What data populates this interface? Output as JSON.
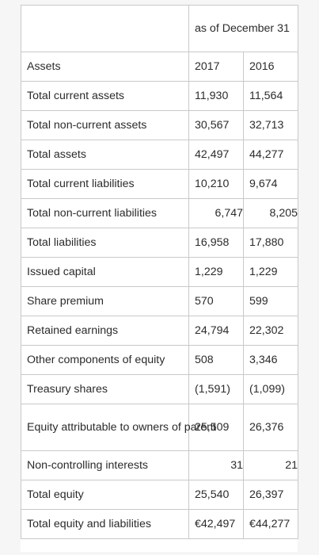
{
  "table": {
    "header": {
      "period": "as of December 31",
      "label_col": ""
    },
    "years": {
      "y1": "2017",
      "y2": "2016"
    },
    "years_label": "Assets",
    "rows": [
      {
        "label": "Total current assets",
        "v2017": "11,930",
        "v2016": "11,564"
      },
      {
        "label": "Total non-current assets",
        "v2017": "30,567",
        "v2016": "32,713"
      },
      {
        "label": "Total assets",
        "v2017": "42,497",
        "v2016": "44,277"
      },
      {
        "label": "Total current liabilities",
        "v2017": "10,210",
        "v2016": "9,674"
      },
      {
        "label": "Total non-current liabilities",
        "v2017": "6,747",
        "v2016": "8,205"
      },
      {
        "label": "Total liabilities",
        "v2017": "16,958",
        "v2016": "17,880"
      },
      {
        "label": "Issued capital",
        "v2017": "1,229",
        "v2016": "1,229"
      },
      {
        "label": "Share premium",
        "v2017": "570",
        "v2016": "599"
      },
      {
        "label": "Retained earnings",
        "v2017": "24,794",
        "v2016": "22,302"
      },
      {
        "label": "Other components of equity",
        "v2017": "508",
        "v2016": "3,346"
      },
      {
        "label": "Treasury shares",
        "v2017": "(1,591)",
        "v2016": "(1,099)"
      },
      {
        "label": "Equity attributable to owners of parent",
        "v2017": "25,509",
        "v2016": "26,376"
      },
      {
        "label": "Non-controlling interests",
        "v2017": "31",
        "v2016": "21"
      },
      {
        "label": "Total equity",
        "v2017": "25,540",
        "v2016": "26,397"
      },
      {
        "label": "Total equity and liabilities",
        "v2017": "€42,497",
        "v2016": "€44,277"
      }
    ]
  }
}
